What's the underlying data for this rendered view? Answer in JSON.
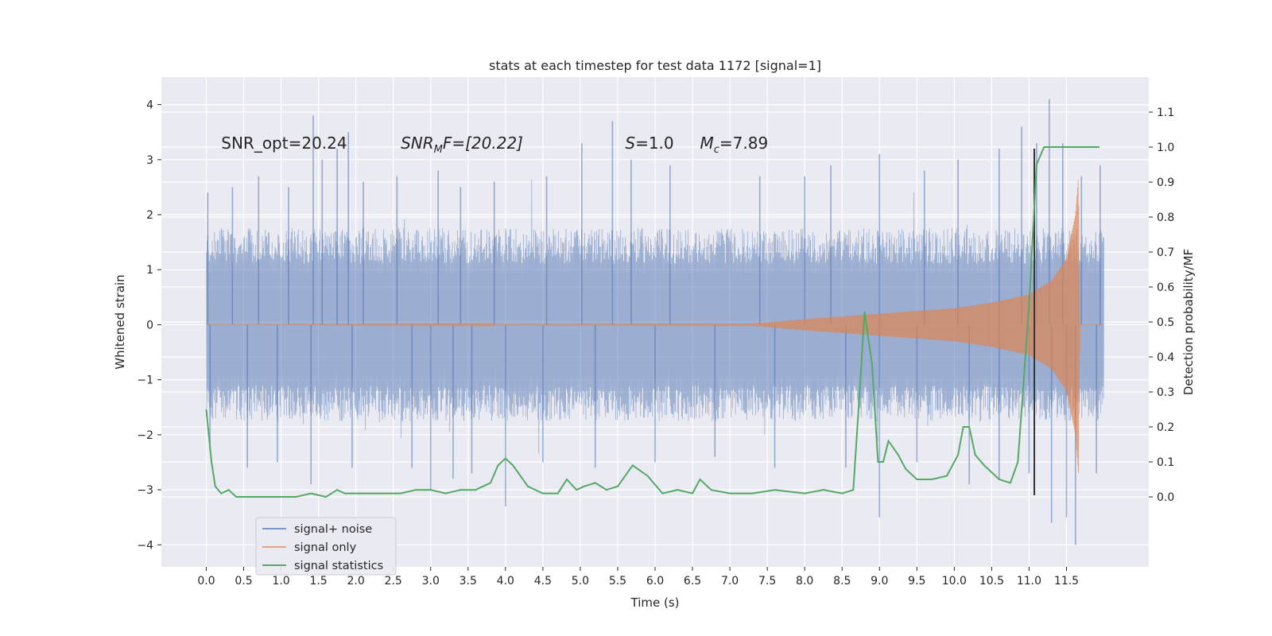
{
  "chart_data": {
    "type": "line",
    "title": "stats at each timestep for test data 1172 [signal=1]",
    "xlabel": "Time (s)",
    "ylabel": "Whitened strain",
    "y2label": "Detection probability/MF",
    "xlim": [
      -0.6,
      12.6
    ],
    "ylim": [
      -4.4,
      4.5
    ],
    "y2lim": [
      -0.2,
      1.2
    ],
    "x_ticks": [
      0.0,
      0.5,
      1.0,
      1.5,
      2.0,
      2.5,
      3.0,
      3.5,
      4.0,
      4.5,
      5.0,
      5.5,
      6.0,
      6.5,
      7.0,
      7.5,
      8.0,
      8.5,
      9.0,
      9.5,
      10.0,
      10.5,
      11.0,
      11.5
    ],
    "x_tick_labels": [
      "0.0",
      "0.5",
      "1.0",
      "1.5",
      "2.0",
      "2.5",
      "3.0",
      "3.5",
      "4.0",
      "4.5",
      "5.0",
      "5.5",
      "6.0",
      "6.5",
      "7.0",
      "7.5",
      "8.0",
      "8.5",
      "9.0",
      "9.5",
      "10.0",
      "10.5",
      "11.0",
      "11.5"
    ],
    "y_ticks": [
      -4,
      -3,
      -2,
      -1,
      0,
      1,
      2,
      3,
      4
    ],
    "y_tick_labels": [
      "−4",
      "−3",
      "−2",
      "−1",
      "0",
      "1",
      "2",
      "3",
      "4"
    ],
    "y2_ticks": [
      0.0,
      0.1,
      0.2,
      0.3,
      0.4,
      0.5,
      0.6,
      0.7,
      0.8,
      0.9,
      1.0,
      1.1
    ],
    "y2_tick_labels": [
      "0.0",
      "0.1",
      "0.2",
      "0.3",
      "0.4",
      "0.5",
      "0.6",
      "0.7",
      "0.8",
      "0.9",
      "1.0",
      "1.1"
    ],
    "grid": true,
    "legend_position": "lower-left",
    "background_color": "#eaeaf2",
    "colors": {
      "noise": "#4c72b0",
      "signal": "#dd8452",
      "stat": "#55a868",
      "vline": "#333333"
    },
    "annotations": {
      "snr_opt": "SNR_opt=20.24",
      "snr_mf_main": "SNR",
      "snr_mf_sub": "M",
      "snr_mf_rest": "F=[20.22]",
      "s_italic": "S",
      "s_value": "=1.0",
      "mc_main": "M",
      "mc_sub": "c",
      "mc_value": "=7.89"
    },
    "series": [
      {
        "name": "signal+ noise",
        "axis": "left",
        "time_range": [
          0.0,
          12.0
        ],
        "envelope_typical": [
          -1.3,
          1.3
        ],
        "peaks": [
          {
            "x": 0.02,
            "y": 2.4
          },
          {
            "x": 0.35,
            "y": 2.5
          },
          {
            "x": 0.7,
            "y": 2.7
          },
          {
            "x": 1.1,
            "y": 2.5
          },
          {
            "x": 1.43,
            "y": 3.8
          },
          {
            "x": 1.55,
            "y": 3.0
          },
          {
            "x": 1.75,
            "y": 3.2
          },
          {
            "x": 1.9,
            "y": 3.5
          },
          {
            "x": 2.1,
            "y": 2.6
          },
          {
            "x": 2.55,
            "y": 2.7
          },
          {
            "x": 3.1,
            "y": 2.8
          },
          {
            "x": 3.4,
            "y": 2.5
          },
          {
            "x": 3.85,
            "y": 2.6
          },
          {
            "x": 4.55,
            "y": 2.7
          },
          {
            "x": 5.02,
            "y": 3.3
          },
          {
            "x": 5.43,
            "y": 3.7
          },
          {
            "x": 5.68,
            "y": 3.0
          },
          {
            "x": 6.2,
            "y": 2.9
          },
          {
            "x": 7.4,
            "y": 2.7
          },
          {
            "x": 8.0,
            "y": 2.7
          },
          {
            "x": 8.35,
            "y": 2.9
          },
          {
            "x": 9.0,
            "y": 3.1
          },
          {
            "x": 9.6,
            "y": 2.8
          },
          {
            "x": 10.05,
            "y": 3.0
          },
          {
            "x": 10.6,
            "y": 3.2
          },
          {
            "x": 10.9,
            "y": 3.6
          },
          {
            "x": 11.1,
            "y": 3.3
          },
          {
            "x": 11.27,
            "y": 4.1
          },
          {
            "x": 11.45,
            "y": 3.3
          },
          {
            "x": 11.7,
            "y": 2.7
          },
          {
            "x": 11.95,
            "y": 2.9
          }
        ],
        "troughs": [
          {
            "x": 0.05,
            "y": -2.3
          },
          {
            "x": 0.55,
            "y": -2.6
          },
          {
            "x": 0.95,
            "y": -2.5
          },
          {
            "x": 1.4,
            "y": -2.9
          },
          {
            "x": 1.95,
            "y": -2.6
          },
          {
            "x": 2.75,
            "y": -2.6
          },
          {
            "x": 3.0,
            "y": -3.0
          },
          {
            "x": 3.3,
            "y": -2.8
          },
          {
            "x": 3.55,
            "y": -2.7
          },
          {
            "x": 4.0,
            "y": -3.3
          },
          {
            "x": 4.5,
            "y": -2.5
          },
          {
            "x": 5.2,
            "y": -2.6
          },
          {
            "x": 6.0,
            "y": -2.5
          },
          {
            "x": 6.8,
            "y": -2.4
          },
          {
            "x": 7.6,
            "y": -2.6
          },
          {
            "x": 8.55,
            "y": -2.6
          },
          {
            "x": 9.0,
            "y": -3.5
          },
          {
            "x": 9.5,
            "y": -2.5
          },
          {
            "x": 10.2,
            "y": -2.9
          },
          {
            "x": 10.6,
            "y": -2.8
          },
          {
            "x": 11.0,
            "y": -2.7
          },
          {
            "x": 11.3,
            "y": -3.6
          },
          {
            "x": 11.5,
            "y": -3.5
          },
          {
            "x": 11.62,
            "y": -4.0
          },
          {
            "x": 11.9,
            "y": -2.7
          }
        ]
      },
      {
        "name": "signal only",
        "axis": "left",
        "time_range": [
          0.0,
          12.0
        ],
        "amplitude_envelope": [
          {
            "x": 0.0,
            "y": 0.0
          },
          {
            "x": 7.3,
            "y": 0.02
          },
          {
            "x": 8.0,
            "y": 0.1
          },
          {
            "x": 9.0,
            "y": 0.2
          },
          {
            "x": 10.0,
            "y": 0.3
          },
          {
            "x": 10.5,
            "y": 0.4
          },
          {
            "x": 11.0,
            "y": 0.55
          },
          {
            "x": 11.3,
            "y": 0.8
          },
          {
            "x": 11.5,
            "y": 1.2
          },
          {
            "x": 11.62,
            "y": 2.0
          },
          {
            "x": 11.66,
            "y": 2.7
          },
          {
            "x": 11.68,
            "y": 0.0
          },
          {
            "x": 12.0,
            "y": 0.0
          }
        ]
      },
      {
        "name": "signal statistics",
        "axis": "right",
        "x": [
          0.0,
          0.07,
          0.12,
          0.2,
          0.3,
          0.4,
          0.5,
          0.6,
          0.8,
          1.0,
          1.2,
          1.4,
          1.6,
          1.75,
          1.85,
          2.0,
          2.2,
          2.4,
          2.6,
          2.8,
          3.0,
          3.2,
          3.4,
          3.6,
          3.8,
          3.9,
          4.0,
          4.1,
          4.3,
          4.5,
          4.7,
          4.82,
          4.95,
          5.05,
          5.2,
          5.35,
          5.5,
          5.7,
          5.9,
          6.1,
          6.3,
          6.5,
          6.6,
          6.75,
          7.0,
          7.3,
          7.6,
          8.0,
          8.25,
          8.5,
          8.65,
          8.75,
          8.8,
          8.9,
          8.98,
          9.05,
          9.12,
          9.25,
          9.35,
          9.5,
          9.7,
          9.9,
          10.05,
          10.12,
          10.2,
          10.28,
          10.4,
          10.6,
          10.75,
          10.85,
          11.0,
          11.1,
          11.2,
          11.3,
          11.45,
          11.6,
          11.8,
          11.94
        ],
        "values": [
          0.25,
          0.1,
          0.03,
          0.01,
          0.02,
          0.0,
          0.0,
          0.0,
          0.0,
          0.0,
          0.0,
          0.01,
          0.0,
          0.02,
          0.01,
          0.01,
          0.01,
          0.01,
          0.01,
          0.02,
          0.02,
          0.01,
          0.02,
          0.02,
          0.04,
          0.09,
          0.11,
          0.09,
          0.03,
          0.01,
          0.01,
          0.05,
          0.02,
          0.03,
          0.04,
          0.02,
          0.03,
          0.09,
          0.06,
          0.01,
          0.02,
          0.01,
          0.05,
          0.02,
          0.01,
          0.01,
          0.02,
          0.01,
          0.02,
          0.01,
          0.02,
          0.35,
          0.53,
          0.38,
          0.1,
          0.1,
          0.16,
          0.12,
          0.08,
          0.05,
          0.05,
          0.06,
          0.12,
          0.2,
          0.2,
          0.12,
          0.09,
          0.05,
          0.04,
          0.1,
          0.55,
          0.95,
          1.0,
          1.0,
          1.0,
          1.0,
          1.0,
          1.0
        ]
      }
    ],
    "vertical_line": {
      "x": 11.07,
      "y_range": [
        -3.1,
        3.2
      ]
    },
    "legend": [
      {
        "label": "signal+ noise",
        "color_key": "noise"
      },
      {
        "label": "signal only",
        "color_key": "signal"
      },
      {
        "label": "signal statistics",
        "color_key": "stat"
      }
    ]
  }
}
